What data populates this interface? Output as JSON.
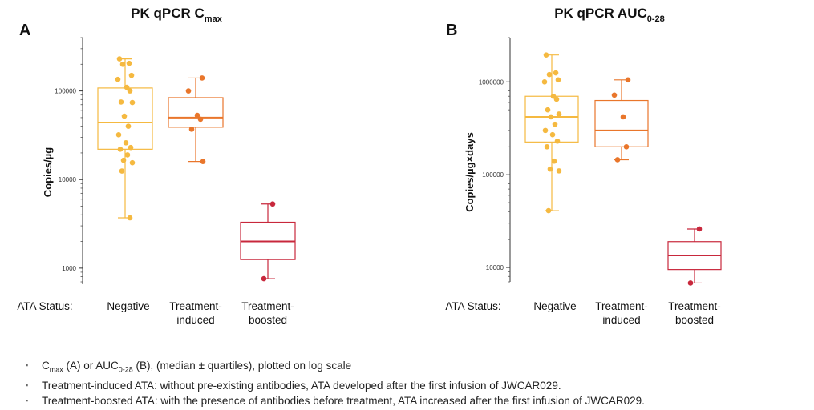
{
  "chart_data": [
    {
      "type": "box",
      "panel_label": "A",
      "title": "PK qPCR C",
      "title_sub": "max",
      "ylabel": "Copies/µg",
      "yscale": "log",
      "ylim": [
        700,
        400000
      ],
      "yticks": [
        1000,
        10000,
        100000
      ],
      "ytick_labels": [
        "1000",
        "10000",
        "100000"
      ],
      "xlabel": "ATA Status:",
      "categories": [
        "Negative",
        "Treatment-\ninduced",
        "Treatment-\nboosted"
      ],
      "colors": [
        "#F5B940",
        "#E9762B",
        "#C8283C"
      ],
      "boxes": [
        {
          "whisker_low": 3700,
          "q1": 22000,
          "median": 44000,
          "q3": 108000,
          "whisker_high": 230000
        },
        {
          "whisker_low": 16000,
          "q1": 39000,
          "median": 50000,
          "q3": 84000,
          "whisker_high": 140000
        },
        {
          "whisker_low": 760,
          "q1": 1250,
          "median": 2000,
          "q3": 3300,
          "whisker_high": 5300
        }
      ],
      "points": [
        [
          230000,
          205000,
          200000,
          150000,
          135000,
          110000,
          100000,
          75000,
          74000,
          52000,
          40000,
          32000,
          26000,
          23000,
          22000,
          19000,
          16500,
          15500,
          12500,
          3700
        ],
        [
          140000,
          100000,
          53000,
          48000,
          37000,
          16000
        ],
        [
          5300,
          760
        ]
      ]
    },
    {
      "type": "box",
      "panel_label": "B",
      "title": "PK qPCR AUC",
      "title_sub": "0-28",
      "ylabel": "Copies/µg×days",
      "yscale": "log",
      "ylim": [
        7000,
        3000000
      ],
      "yticks": [
        10000,
        100000,
        1000000
      ],
      "ytick_labels": [
        "10000",
        "100000",
        "1000000"
      ],
      "xlabel": "ATA Status:",
      "categories": [
        "Negative",
        "Treatment-\ninduced",
        "Treatment-\nboosted"
      ],
      "colors": [
        "#F5B940",
        "#E9762B",
        "#C8283C"
      ],
      "boxes": [
        {
          "whisker_low": 41000,
          "q1": 225000,
          "median": 420000,
          "q3": 700000,
          "whisker_high": 1950000
        },
        {
          "whisker_low": 145000,
          "q1": 200000,
          "median": 300000,
          "q3": 630000,
          "whisker_high": 1050000
        },
        {
          "whisker_low": 6800,
          "q1": 9500,
          "median": 13500,
          "q3": 19000,
          "whisker_high": 26000
        }
      ],
      "points": [
        [
          1950000,
          1250000,
          1200000,
          1050000,
          1000000,
          700000,
          650000,
          500000,
          450000,
          420000,
          350000,
          300000,
          270000,
          230000,
          200000,
          140000,
          115000,
          110000,
          41000
        ],
        [
          1050000,
          720000,
          420000,
          200000,
          145000
        ],
        [
          26000,
          6800
        ]
      ]
    }
  ],
  "notes": [
    {
      "main": "C",
      "sub": "max",
      "mid": " (A) or AUC",
      "sub2": "0-28",
      "tail": " (B), (median ± quartiles), plotted on log scale"
    },
    {
      "main": "Treatment-induced ATA: without pre-existing antibodies, ATA developed after the first infusion of JWCAR029.",
      "sub": "",
      "mid": "",
      "sub2": "",
      "tail": ""
    },
    {
      "main": "Treatment-boosted ATA: with the presence of antibodies before treatment, ATA increased after the first infusion of JWCAR029.",
      "sub": "",
      "mid": "",
      "sub2": "",
      "tail": ""
    }
  ],
  "bullet": "▪"
}
